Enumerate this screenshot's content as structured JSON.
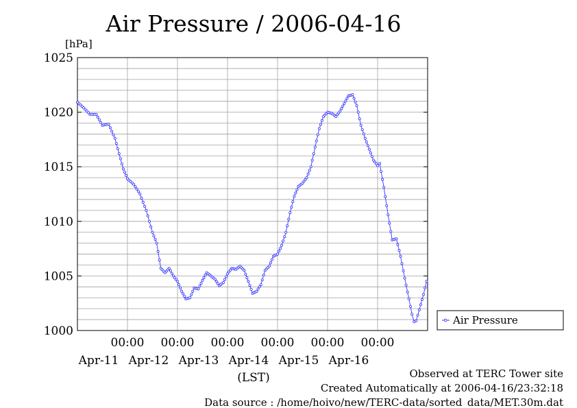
{
  "chart_data": {
    "type": "line",
    "title": "Air Pressure / 2006-04-16",
    "ylabel": "[hPa]",
    "xlabel": "(LST)",
    "ylim": [
      1000,
      1025
    ],
    "yticks": [
      "1000",
      "1005",
      "1010",
      "1015",
      "1020",
      "1025"
    ],
    "xlim": [
      "2006-04-10 00:00",
      "2006-04-16 23:59"
    ],
    "xticks": [
      {
        "time": "00:00",
        "date": "Apr-11"
      },
      {
        "time": "00:00",
        "date": "Apr-12"
      },
      {
        "time": "00:00",
        "date": "Apr-13"
      },
      {
        "time": "00:00",
        "date": "Apr-14"
      },
      {
        "time": "00:00",
        "date": "Apr-15"
      },
      {
        "time": "00:00",
        "date": "Apr-16"
      }
    ],
    "grid": true,
    "legend_position": "right",
    "series": [
      {
        "name": "Air Pressure",
        "color": "#3333ff",
        "points": [
          [
            "2006-04-10 00:00",
            1020.9
          ],
          [
            "2006-04-10 03:00",
            1020.4
          ],
          [
            "2006-04-10 06:00",
            1019.8
          ],
          [
            "2006-04-10 09:00",
            1019.8
          ],
          [
            "2006-04-10 12:00",
            1018.8
          ],
          [
            "2006-04-10 15:00",
            1018.9
          ],
          [
            "2006-04-10 18:00",
            1017.6
          ],
          [
            "2006-04-10 20:00",
            1016.2
          ],
          [
            "2006-04-10 22:00",
            1014.8
          ],
          [
            "2006-04-11 00:00",
            1013.9
          ],
          [
            "2006-04-11 03:00",
            1013.4
          ],
          [
            "2006-04-11 06:00",
            1012.5
          ],
          [
            "2006-04-11 09:00",
            1011.0
          ],
          [
            "2006-04-11 12:00",
            1009.0
          ],
          [
            "2006-04-11 14:00",
            1008.0
          ],
          [
            "2006-04-11 16:00",
            1005.7
          ],
          [
            "2006-04-11 18:00",
            1005.3
          ],
          [
            "2006-04-11 20:00",
            1005.7
          ],
          [
            "2006-04-11 22:00",
            1005.0
          ],
          [
            "2006-04-12 00:00",
            1004.5
          ],
          [
            "2006-04-12 02:00",
            1003.6
          ],
          [
            "2006-04-12 04:00",
            1002.9
          ],
          [
            "2006-04-12 06:00",
            1003.0
          ],
          [
            "2006-04-12 08:00",
            1003.9
          ],
          [
            "2006-04-12 10:00",
            1003.8
          ],
          [
            "2006-04-12 12:00",
            1004.6
          ],
          [
            "2006-04-12 14:00",
            1005.3
          ],
          [
            "2006-04-12 16:00",
            1005.0
          ],
          [
            "2006-04-12 18:00",
            1004.7
          ],
          [
            "2006-04-12 20:00",
            1004.1
          ],
          [
            "2006-04-12 22:00",
            1004.4
          ],
          [
            "2006-04-13 00:00",
            1005.2
          ],
          [
            "2006-04-13 02:00",
            1005.7
          ],
          [
            "2006-04-13 04:00",
            1005.6
          ],
          [
            "2006-04-13 06:00",
            1005.9
          ],
          [
            "2006-04-13 08:00",
            1005.5
          ],
          [
            "2006-04-13 10:00",
            1004.5
          ],
          [
            "2006-04-13 12:00",
            1003.4
          ],
          [
            "2006-04-13 14:00",
            1003.6
          ],
          [
            "2006-04-13 16:00",
            1004.2
          ],
          [
            "2006-04-13 18:00",
            1005.5
          ],
          [
            "2006-04-13 20:00",
            1005.9
          ],
          [
            "2006-04-13 22:00",
            1006.8
          ],
          [
            "2006-04-14 00:00",
            1007.0
          ],
          [
            "2006-04-14 02:00",
            1007.8
          ],
          [
            "2006-04-14 04:00",
            1009.0
          ],
          [
            "2006-04-14 06:00",
            1010.8
          ],
          [
            "2006-04-14 08:00",
            1012.3
          ],
          [
            "2006-04-14 10:00",
            1013.2
          ],
          [
            "2006-04-14 12:00",
            1013.5
          ],
          [
            "2006-04-14 14:00",
            1014.0
          ],
          [
            "2006-04-14 16:00",
            1015.0
          ],
          [
            "2006-04-14 18:00",
            1016.8
          ],
          [
            "2006-04-14 20:00",
            1018.5
          ],
          [
            "2006-04-14 22:00",
            1019.6
          ],
          [
            "2006-04-15 00:00",
            1020.0
          ],
          [
            "2006-04-15 02:00",
            1019.9
          ],
          [
            "2006-04-15 04:00",
            1019.6
          ],
          [
            "2006-04-15 06:00",
            1020.1
          ],
          [
            "2006-04-15 08:00",
            1020.8
          ],
          [
            "2006-04-15 10:00",
            1021.5
          ],
          [
            "2006-04-15 12:00",
            1021.6
          ],
          [
            "2006-04-15 14:00",
            1020.6
          ],
          [
            "2006-04-15 16:00",
            1018.8
          ],
          [
            "2006-04-15 18:00",
            1017.6
          ],
          [
            "2006-04-15 20:00",
            1016.6
          ],
          [
            "2006-04-15 22:00",
            1015.6
          ],
          [
            "2006-04-16 00:00",
            1015.1
          ],
          [
            "2006-04-16 01:00",
            1015.3
          ],
          [
            "2006-04-16 03:00",
            1013.1
          ],
          [
            "2006-04-16 05:00",
            1010.6
          ],
          [
            "2006-04-16 07:00",
            1008.3
          ],
          [
            "2006-04-16 09:00",
            1008.4
          ],
          [
            "2006-04-16 11:00",
            1006.8
          ],
          [
            "2006-04-16 13:00",
            1004.8
          ],
          [
            "2006-04-16 15:00",
            1002.9
          ],
          [
            "2006-04-16 16:30",
            1001.5
          ],
          [
            "2006-04-16 17:30",
            1000.8
          ],
          [
            "2006-04-16 18:30",
            1000.9
          ],
          [
            "2006-04-16 20:00",
            1001.9
          ],
          [
            "2006-04-16 22:00",
            1003.3
          ],
          [
            "2006-04-16 23:30",
            1004.5
          ]
        ]
      }
    ]
  },
  "footer": {
    "observed": "Observed at TERC Tower site",
    "created": "Created Automatically at 2006-04-16/23:32:18",
    "source": "Data source : /home/hoivo/new/TERC-data/sorted_data/MET.30m.dat"
  }
}
